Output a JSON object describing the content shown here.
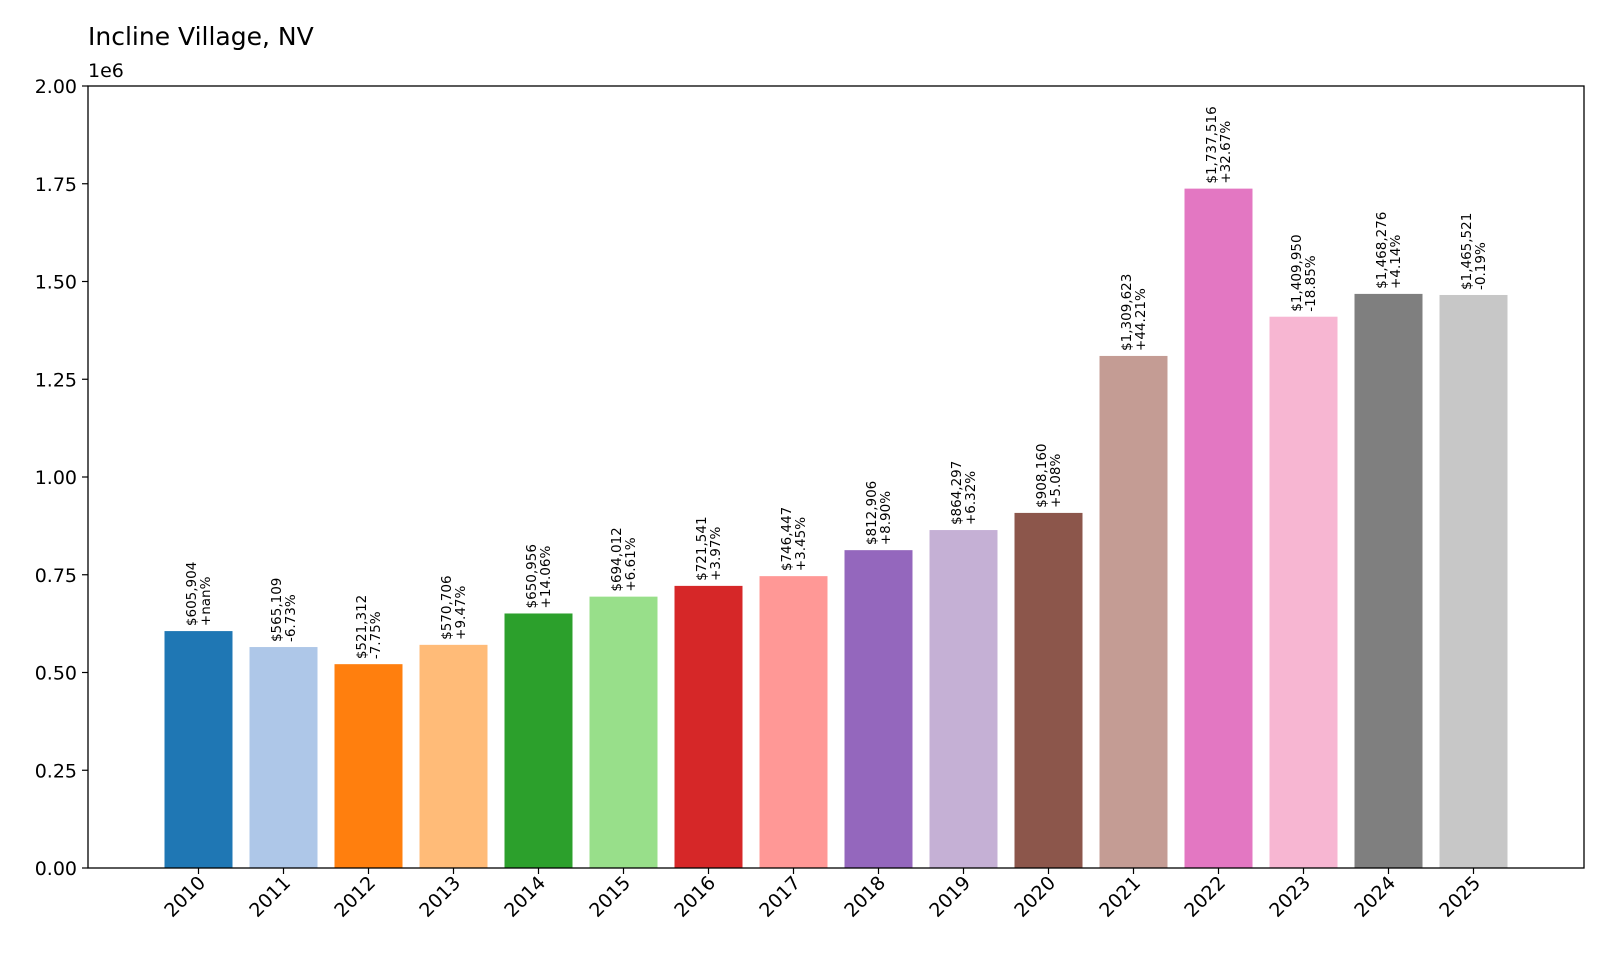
{
  "chart_data": {
    "type": "bar",
    "title": "Incline Village, NV",
    "offset_label": "1e6",
    "xlabel": "",
    "ylabel": "",
    "ylim": [
      0,
      2000000
    ],
    "yticks": [
      0,
      250000,
      500000,
      750000,
      1000000,
      1250000,
      1500000,
      1750000,
      2000000
    ],
    "ytick_labels": [
      "0.00",
      "0.25",
      "0.50",
      "0.75",
      "1.00",
      "1.25",
      "1.50",
      "1.75",
      "2.00"
    ],
    "grid": false,
    "legend": "none",
    "categories": [
      "2010",
      "2011",
      "2012",
      "2013",
      "2014",
      "2015",
      "2016",
      "2017",
      "2018",
      "2019",
      "2020",
      "2021",
      "2022",
      "2023",
      "2024",
      "2025"
    ],
    "values": [
      605904,
      565109,
      521312,
      570706,
      650956,
      694012,
      721541,
      746447,
      812906,
      864297,
      908160,
      1309623,
      1737516,
      1409950,
      1468276,
      1465521
    ],
    "value_labels": [
      "$605,904",
      "$565,109",
      "$521,312",
      "$570,706",
      "$650,956",
      "$694,012",
      "$721,541",
      "$746,447",
      "$812,906",
      "$864,297",
      "$908,160",
      "$1,309,623",
      "$1,737,516",
      "$1,409,950",
      "$1,468,276",
      "$1,465,521"
    ],
    "change_labels": [
      "+nan%",
      "-6.73%",
      "-7.75%",
      "+9.47%",
      "+14.06%",
      "+6.61%",
      "+3.97%",
      "+3.45%",
      "+8.90%",
      "+6.32%",
      "+5.08%",
      "+44.21%",
      "+32.67%",
      "-18.85%",
      "+4.14%",
      "-0.19%"
    ],
    "colors": [
      "#1f77b4",
      "#aec7e8",
      "#ff7f0e",
      "#ffbb78",
      "#2ca02c",
      "#98df8a",
      "#d62728",
      "#ff9896",
      "#9467bd",
      "#c5b0d5",
      "#8c564b",
      "#c49c94",
      "#e377c2",
      "#f7b6d2",
      "#7f7f7f",
      "#c7c7c7"
    ]
  }
}
